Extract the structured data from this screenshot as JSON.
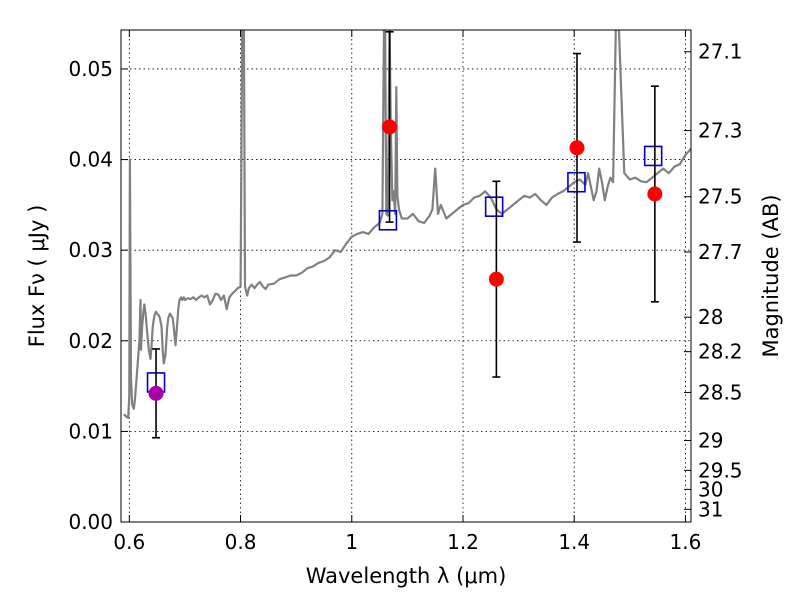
{
  "chart_data": {
    "type": "scatter",
    "title": "",
    "xlabel": "Wavelength  λ (μm)",
    "ylabel": "Flux  Fν  ( μJy )",
    "ylabel_right": "Magnitude (AB)",
    "xlim": [
      0.585,
      1.61
    ],
    "ylim": [
      0.0,
      0.0543
    ],
    "x_ticks": [
      0.6,
      0.8,
      1.0,
      1.2,
      1.4,
      1.6
    ],
    "x_tick_labels": [
      "0.6",
      "0.8",
      "1",
      "1.2",
      "1.4",
      "1.6"
    ],
    "y_ticks": [
      0.0,
      0.01,
      0.02,
      0.03,
      0.04,
      0.05
    ],
    "y_tick_labels": [
      "0.00",
      "0.01",
      "0.02",
      "0.03",
      "0.04",
      "0.05"
    ],
    "right_ticks": [
      {
        "label": "27.1",
        "flux": 0.0519
      },
      {
        "label": "27.3",
        "flux": 0.0432
      },
      {
        "label": "27.5",
        "flux": 0.0359
      },
      {
        "label": "27.7",
        "flux": 0.0298
      },
      {
        "label": "28",
        "flux": 0.0226
      },
      {
        "label": "28.2",
        "flux": 0.0188
      },
      {
        "label": "28.5",
        "flux": 0.0143
      },
      {
        "label": "29",
        "flux": 0.009
      },
      {
        "label": "29.5",
        "flux": 0.0057
      },
      {
        "label": "30",
        "flux": 0.0036
      },
      {
        "label": "31",
        "flux": 0.0014
      }
    ],
    "grid": true,
    "colors": {
      "model": "#808080",
      "observed": "#ff0000",
      "observed_first": "#aa00aa",
      "model_box": "#0000cc",
      "errorbar": "#000000"
    },
    "series": [
      {
        "kind": "spectrum",
        "x": [
          0.59,
          0.595,
          0.598,
          0.6,
          0.601,
          0.603,
          0.605,
          0.608,
          0.61,
          0.612,
          0.615,
          0.618,
          0.62,
          0.621,
          0.623,
          0.625,
          0.627,
          0.63,
          0.632,
          0.635,
          0.638,
          0.64,
          0.642,
          0.645,
          0.648,
          0.65,
          0.653,
          0.655,
          0.658,
          0.66,
          0.662,
          0.665,
          0.668,
          0.67,
          0.673,
          0.675,
          0.678,
          0.68,
          0.683,
          0.685,
          0.688,
          0.69,
          0.693,
          0.695,
          0.698,
          0.7,
          0.705,
          0.71,
          0.715,
          0.72,
          0.725,
          0.73,
          0.735,
          0.74,
          0.745,
          0.75,
          0.755,
          0.76,
          0.765,
          0.77,
          0.775,
          0.78,
          0.785,
          0.79,
          0.795,
          0.8,
          0.803,
          0.806,
          0.808,
          0.81,
          0.812,
          0.815,
          0.82,
          0.825,
          0.83,
          0.835,
          0.84,
          0.845,
          0.85,
          0.86,
          0.87,
          0.88,
          0.89,
          0.9,
          0.91,
          0.92,
          0.93,
          0.94,
          0.95,
          0.96,
          0.97,
          0.98,
          0.99,
          1.0,
          1.01,
          1.02,
          1.03,
          1.04,
          1.05,
          1.055,
          1.058,
          1.06,
          1.062,
          1.065,
          1.068,
          1.07,
          1.073,
          1.075,
          1.078,
          1.08,
          1.082,
          1.085,
          1.09,
          1.1,
          1.11,
          1.12,
          1.13,
          1.14,
          1.145,
          1.15,
          1.155,
          1.16,
          1.17,
          1.18,
          1.19,
          1.2,
          1.21,
          1.22,
          1.23,
          1.24,
          1.25,
          1.26,
          1.27,
          1.28,
          1.29,
          1.3,
          1.31,
          1.32,
          1.33,
          1.34,
          1.35,
          1.36,
          1.37,
          1.38,
          1.39,
          1.4,
          1.41,
          1.42,
          1.425,
          1.43,
          1.435,
          1.44,
          1.445,
          1.45,
          1.455,
          1.46,
          1.465,
          1.47,
          1.475,
          1.48,
          1.49,
          1.5,
          1.51,
          1.52,
          1.53,
          1.54,
          1.55,
          1.56,
          1.57,
          1.58,
          1.59,
          1.6,
          1.61
        ],
        "y": [
          0.0119,
          0.0116,
          0.0115,
          0.014,
          0.04,
          0.016,
          0.013,
          0.0125,
          0.0135,
          0.015,
          0.0175,
          0.02,
          0.0245,
          0.019,
          0.0215,
          0.023,
          0.024,
          0.0225,
          0.021,
          0.019,
          0.018,
          0.0195,
          0.0215,
          0.0228,
          0.0232,
          0.023,
          0.0228,
          0.0225,
          0.0215,
          0.019,
          0.0175,
          0.0185,
          0.0215,
          0.0225,
          0.023,
          0.0228,
          0.0225,
          0.0215,
          0.0195,
          0.021,
          0.0235,
          0.0245,
          0.0248,
          0.0245,
          0.0248,
          0.0245,
          0.0247,
          0.0246,
          0.0248,
          0.0245,
          0.0248,
          0.025,
          0.0248,
          0.025,
          0.024,
          0.0245,
          0.0252,
          0.0251,
          0.0245,
          0.025,
          0.0235,
          0.0248,
          0.0252,
          0.0255,
          0.0258,
          0.026,
          0.055,
          0.055,
          0.026,
          0.0255,
          0.025,
          0.0258,
          0.0262,
          0.0258,
          0.0262,
          0.0265,
          0.026,
          0.0257,
          0.0262,
          0.0263,
          0.0268,
          0.027,
          0.0272,
          0.0272,
          0.0275,
          0.028,
          0.0282,
          0.0286,
          0.0288,
          0.0292,
          0.03,
          0.0298,
          0.0307,
          0.0315,
          0.0318,
          0.032,
          0.0318,
          0.0325,
          0.033,
          0.034,
          0.055,
          0.055,
          0.034,
          0.0338,
          0.055,
          0.044,
          0.0355,
          0.0365,
          0.034,
          0.048,
          0.036,
          0.0345,
          0.0335,
          0.0335,
          0.034,
          0.0332,
          0.033,
          0.0338,
          0.0345,
          0.039,
          0.034,
          0.035,
          0.0335,
          0.034,
          0.0345,
          0.035,
          0.0352,
          0.0358,
          0.036,
          0.0365,
          0.0358,
          0.0345,
          0.034,
          0.0345,
          0.035,
          0.0355,
          0.036,
          0.0358,
          0.0362,
          0.0355,
          0.035,
          0.0358,
          0.0362,
          0.0365,
          0.037,
          0.0375,
          0.0378,
          0.0372,
          0.0385,
          0.037,
          0.0355,
          0.0365,
          0.039,
          0.0375,
          0.0355,
          0.037,
          0.038,
          0.0375,
          0.055,
          0.055,
          0.0385,
          0.0378,
          0.038,
          0.0376,
          0.0375,
          0.038,
          0.0385,
          0.039,
          0.0385,
          0.0392,
          0.0395,
          0.0405,
          0.0412
        ]
      },
      {
        "kind": "photometry",
        "x": [
          0.648,
          1.068,
          1.26,
          1.405,
          1.545
        ],
        "y": [
          0.0142,
          0.0436,
          0.0268,
          0.0413,
          0.0362
        ],
        "yerr": [
          0.0049,
          0.0105,
          0.0108,
          0.0104,
          0.0119
        ]
      },
      {
        "kind": "model_boxes",
        "x": [
          0.648,
          1.065,
          1.256,
          1.404,
          1.542
        ],
        "y": [
          0.0154,
          0.0333,
          0.0348,
          0.0375,
          0.0404
        ]
      }
    ]
  }
}
